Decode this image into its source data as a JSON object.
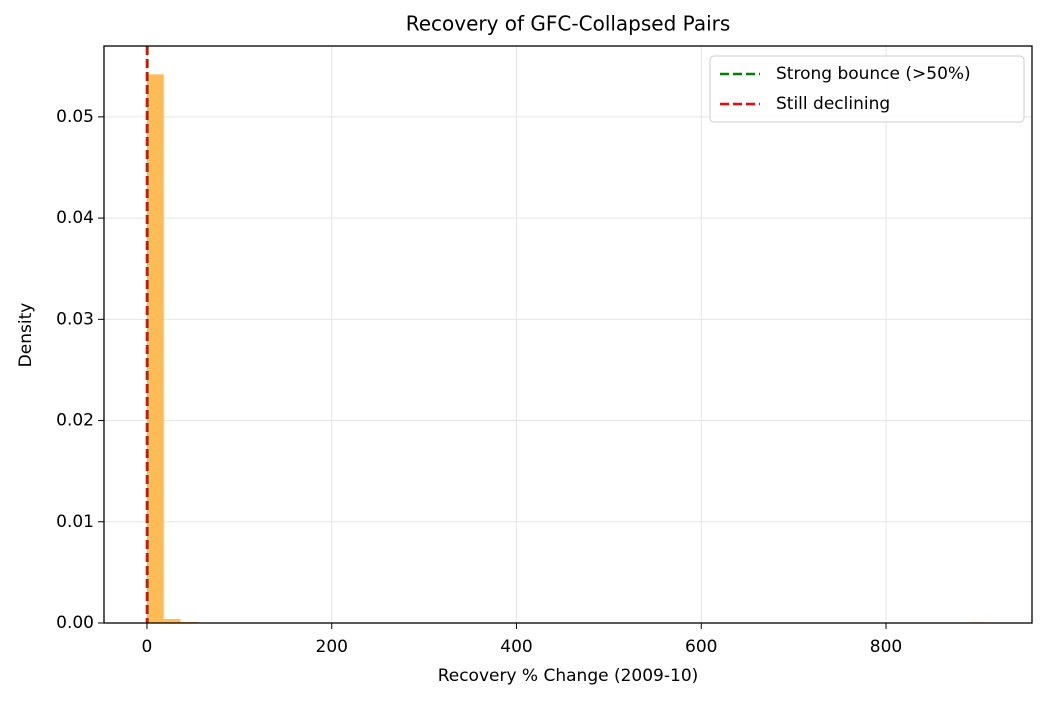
{
  "chart_data": {
    "type": "histogram",
    "title": "Recovery of GFC-Collapsed Pairs",
    "x_label": "Recovery % Change (2009-10)",
    "y_label": "Density",
    "bins": [
      0,
      18.2,
      36.4,
      54.6,
      72.8,
      91,
      109.2,
      127.4,
      145.6,
      163.8,
      182,
      200.2,
      218.4,
      236.6,
      254.8,
      273,
      291.2,
      309.4,
      327.6,
      345.8,
      364,
      382.2,
      400.4,
      418.6,
      436.8,
      455,
      473.2,
      491.4,
      509.6,
      527.8,
      546,
      564.2,
      582.4,
      600.6,
      618.8,
      637,
      655.2,
      673.4,
      691.6,
      709.8,
      728,
      746.2,
      764.4,
      782.6,
      800.8,
      819,
      837.2,
      855.4,
      873.6,
      891.8,
      910
    ],
    "values": [
      0.0542,
      0.0004,
      0.0001,
      0,
      0,
      0,
      0,
      0,
      0,
      0,
      0,
      0,
      0,
      0,
      0,
      0,
      0,
      0,
      0,
      0,
      0,
      0,
      0,
      0,
      0,
      0,
      0,
      0,
      0,
      0,
      0,
      0,
      0,
      0,
      0,
      0,
      0,
      0,
      0,
      0,
      0,
      0,
      0,
      0,
      0,
      0,
      0,
      0,
      0,
      6e-05
    ],
    "color": "#ffb84d",
    "vlines": [
      {
        "name": "Strong bounce (>50%)",
        "color": "#008000",
        "x": 0.5
      },
      {
        "name": "Still declining",
        "color": "#ff0000",
        "x": 0
      }
    ],
    "xlim": [
      -46.5,
      958
    ],
    "ylim": [
      0,
      0.057
    ],
    "xticks": [
      0,
      200,
      400,
      600,
      800
    ],
    "yticks": [
      {
        "value": 0,
        "label": "0.00"
      },
      {
        "value": 0.01,
        "label": "0.01"
      },
      {
        "value": 0.02,
        "label": "0.02"
      },
      {
        "value": 0.03,
        "label": "0.03"
      },
      {
        "value": 0.04,
        "label": "0.04"
      },
      {
        "value": 0.05,
        "label": "0.05"
      }
    ],
    "grid": true,
    "legend": "upper right"
  }
}
